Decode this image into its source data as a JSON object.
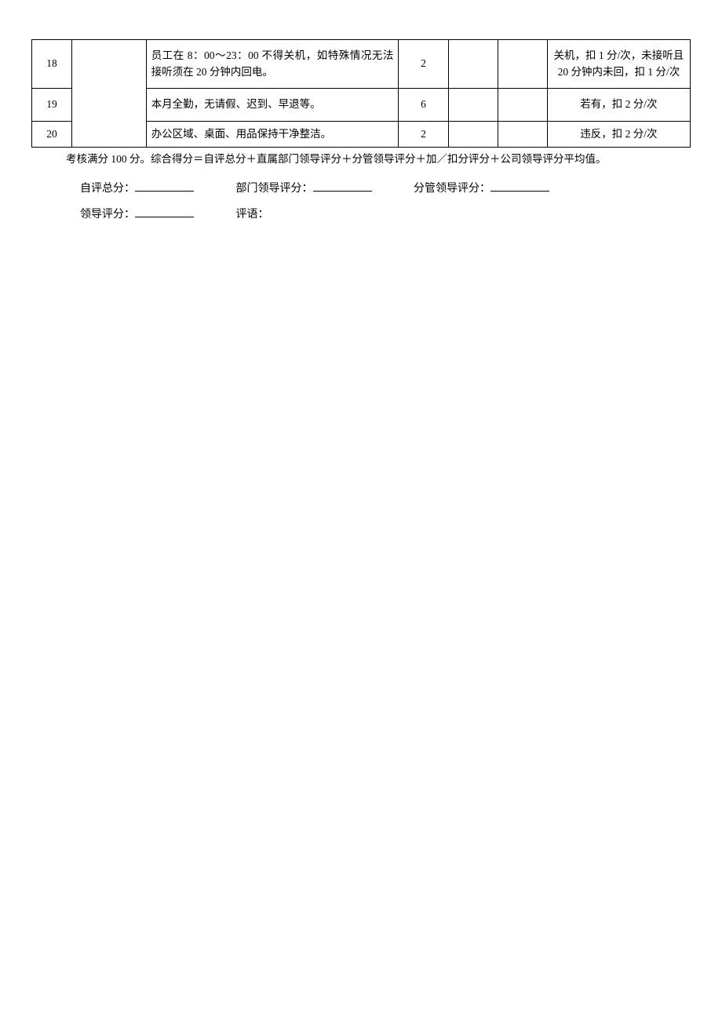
{
  "table": {
    "rows": [
      {
        "num": "18",
        "desc": "员工在 8：00～23：00 不得关机，如特殊情况无法接听须在 20 分钟内回电。",
        "score": "2",
        "remark": "关机，扣 1 分/次，未接听且 20 分钟内未回，扣 1 分/次"
      },
      {
        "num": "19",
        "desc": "本月全勤，无请假、迟到、早退等。",
        "score": "6",
        "remark": "若有，扣 2 分/次"
      },
      {
        "num": "20",
        "desc": "办公区域、桌面、用品保持干净整洁。",
        "score": "2",
        "remark": "违反，扣 2 分/次"
      }
    ]
  },
  "note": "考核满分 100 分。综合得分＝自评总分＋直属部门领导评分＋分管领导评分＋加／扣分评分＋公司领导评分平均值。",
  "score_labels": {
    "self": "自评总分：",
    "dept": "部门领导评分：",
    "division": "分管领导评分：",
    "leader": "领导评分：",
    "comment": "评语："
  }
}
